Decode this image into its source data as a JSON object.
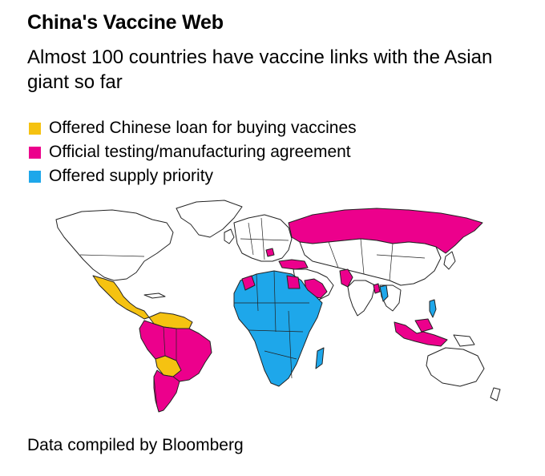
{
  "title": "China's Vaccine Web",
  "subtitle": "Almost 100 countries have vaccine links with the Asian giant so far",
  "legend": [
    {
      "label": "Offered Chinese loan for buying vaccines",
      "color": "#F5C211"
    },
    {
      "label": "Official testing/manufacturing agreement",
      "color": "#EC008C"
    },
    {
      "label": "Offered supply priority",
      "color": "#1EA7EA"
    }
  ],
  "map": {
    "base_color": "#FFFFFF",
    "loan_regions": [
      "Mexico",
      "Central America",
      "Venezuela",
      "Guyana",
      "Bolivia",
      "Paraguay"
    ],
    "agreement_regions": [
      "Brazil",
      "Colombia",
      "Peru",
      "Chile",
      "Argentina",
      "Russia",
      "Turkey",
      "Serbia",
      "Morocco",
      "Egypt",
      "Saudi Arabia",
      "UAE",
      "Pakistan",
      "Bangladesh",
      "Indonesia",
      "Malaysia"
    ],
    "supply_priority_regions": [
      "Africa",
      "Philippines",
      "Myanmar"
    ]
  },
  "footer": "Data compiled by Bloomberg"
}
